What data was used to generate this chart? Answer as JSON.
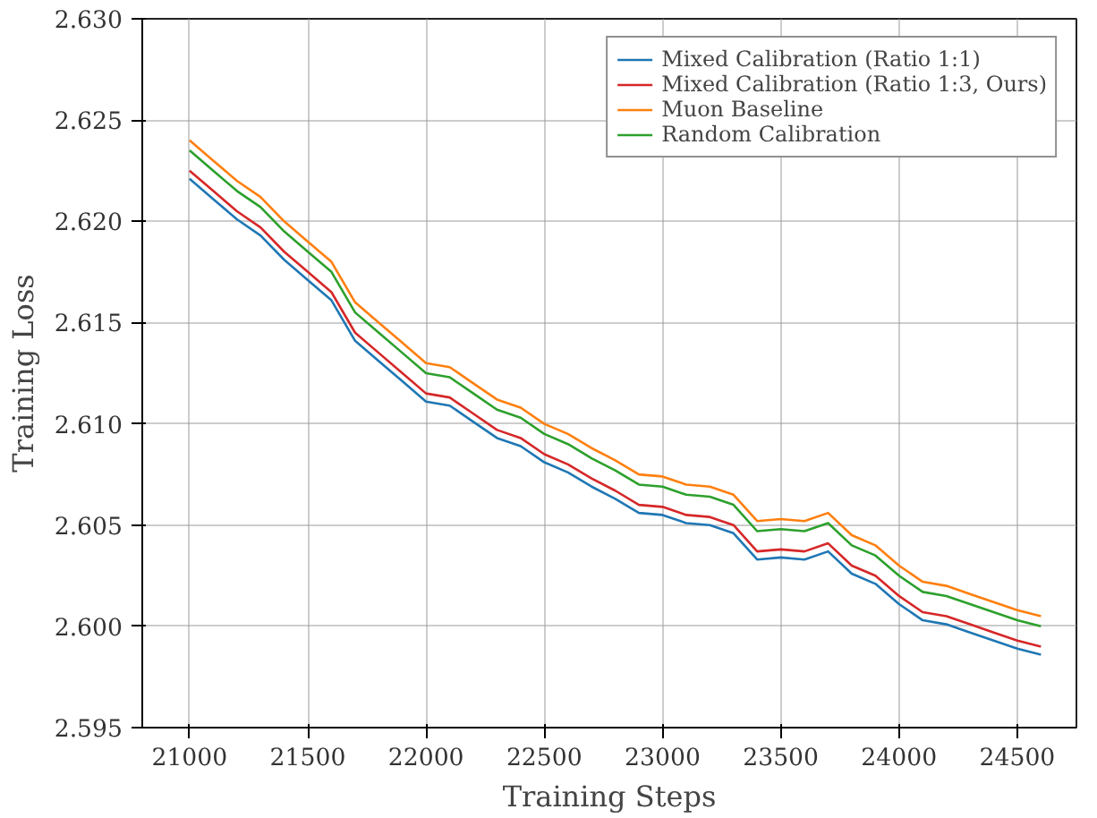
{
  "chart_data": {
    "type": "line",
    "xlabel": "Training Steps",
    "ylabel": "Training Loss",
    "x": [
      21000,
      21100,
      21200,
      21300,
      21400,
      21500,
      21600,
      21700,
      21800,
      21900,
      22000,
      22100,
      22200,
      22300,
      22400,
      22500,
      22600,
      22700,
      22800,
      22900,
      23000,
      23100,
      23200,
      23300,
      23400,
      23500,
      23600,
      23700,
      23800,
      23900,
      24000,
      24100,
      24200,
      24300,
      24400,
      24500,
      24600
    ],
    "series": [
      {
        "name": "Mixed Calibration (Ratio 1:1)",
        "color": "#1f77b4",
        "values": [
          2.6221,
          2.6211,
          2.6201,
          2.6193,
          2.6181,
          2.6171,
          2.6161,
          2.6141,
          2.6131,
          2.6121,
          2.6111,
          2.6109,
          2.6101,
          2.6093,
          2.6089,
          2.6081,
          2.6076,
          2.6069,
          2.6063,
          2.6056,
          2.6055,
          2.6051,
          2.605,
          2.6046,
          2.6033,
          2.6034,
          2.6033,
          2.6037,
          2.6026,
          2.6021,
          2.6011,
          2.6003,
          2.6001,
          2.5997,
          2.5993,
          2.5989,
          2.5986
        ]
      },
      {
        "name": "Mixed Calibration (Ratio 1:3, Ours)",
        "color": "#d62728",
        "values": [
          2.6225,
          2.6215,
          2.6205,
          2.6197,
          2.6185,
          2.6175,
          2.6165,
          2.6145,
          2.6135,
          2.6125,
          2.6115,
          2.6113,
          2.6105,
          2.6097,
          2.6093,
          2.6085,
          2.608,
          2.6073,
          2.6067,
          2.606,
          2.6059,
          2.6055,
          2.6054,
          2.605,
          2.6037,
          2.6038,
          2.6037,
          2.6041,
          2.603,
          2.6025,
          2.6015,
          2.6007,
          2.6005,
          2.6001,
          2.5997,
          2.5993,
          2.599
        ]
      },
      {
        "name": "Muon Baseline",
        "color": "#ff7f0e",
        "values": [
          2.624,
          2.623,
          2.622,
          2.6212,
          2.62,
          2.619,
          2.618,
          2.616,
          2.615,
          2.614,
          2.613,
          2.6128,
          2.612,
          2.6112,
          2.6108,
          2.61,
          2.6095,
          2.6088,
          2.6082,
          2.6075,
          2.6074,
          2.607,
          2.6069,
          2.6065,
          2.6052,
          2.6053,
          2.6052,
          2.6056,
          2.6045,
          2.604,
          2.603,
          2.6022,
          2.602,
          2.6016,
          2.6012,
          2.6008,
          2.6005
        ]
      },
      {
        "name": "Random Calibration",
        "color": "#2ca02c",
        "values": [
          2.6235,
          2.6225,
          2.6215,
          2.6207,
          2.6195,
          2.6185,
          2.6175,
          2.6155,
          2.6145,
          2.6135,
          2.6125,
          2.6123,
          2.6115,
          2.6107,
          2.6103,
          2.6095,
          2.609,
          2.6083,
          2.6077,
          2.607,
          2.6069,
          2.6065,
          2.6064,
          2.606,
          2.6047,
          2.6048,
          2.6047,
          2.6051,
          2.604,
          2.6035,
          2.6025,
          2.6017,
          2.6015,
          2.6011,
          2.6007,
          2.6003,
          2.6
        ]
      }
    ],
    "xlim": [
      20800,
      24750
    ],
    "xticks": [
      21000,
      21500,
      22000,
      22500,
      23000,
      23500,
      24000,
      24500
    ],
    "ylim": [
      2.595,
      2.63
    ],
    "yticks": [
      {
        "value": 2.595,
        "label": "2.595"
      },
      {
        "value": 2.6,
        "label": "2.600"
      },
      {
        "value": 2.605,
        "label": "2.605"
      },
      {
        "value": 2.61,
        "label": "2.610"
      },
      {
        "value": 2.615,
        "label": "2.615"
      },
      {
        "value": 2.62,
        "label": "2.620"
      },
      {
        "value": 2.625,
        "label": "2.625"
      },
      {
        "value": 2.63,
        "label": "2.630"
      }
    ],
    "grid": true,
    "legend": "top right",
    "marker": "none",
    "line_style": "solid"
  }
}
